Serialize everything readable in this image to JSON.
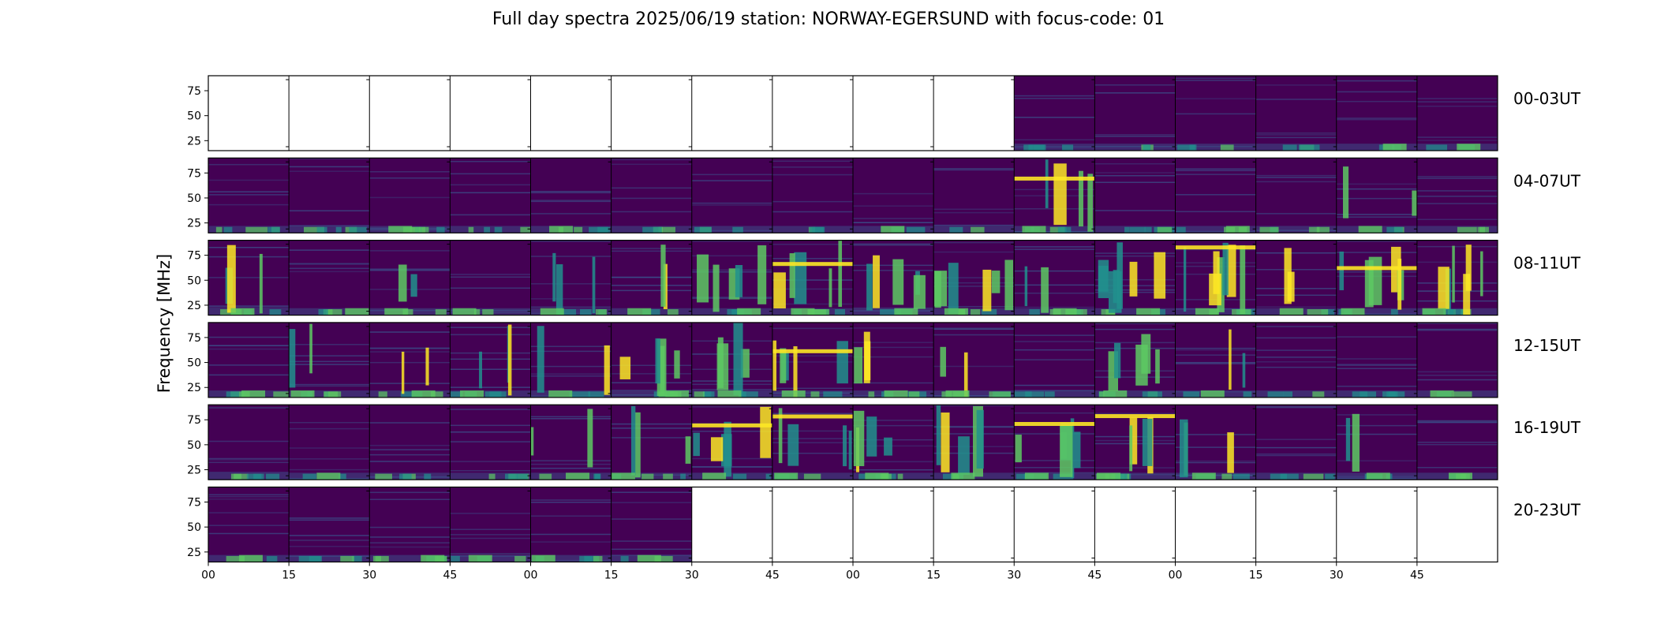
{
  "chart_data": {
    "type": "heatmap",
    "title": "Full day spectra 2025/06/19 station: NORWAY-EGERSUND with focus-code: 01",
    "ylabel": "Frequency [MHz]",
    "ylim": [
      15,
      90
    ],
    "colormap": "viridis",
    "colormap_colors": [
      "#440154",
      "#3b528b",
      "#21908d",
      "#5dc963",
      "#fde725"
    ],
    "yticks": [
      25,
      50,
      75
    ],
    "xticks": [
      "00",
      "15",
      "30",
      "45",
      "00",
      "15",
      "30",
      "45",
      "00",
      "15",
      "30",
      "45",
      "00",
      "15",
      "30",
      "45"
    ],
    "panels_per_row": 16,
    "panel_minutes": 15,
    "rows": [
      {
        "label": "00-03UT",
        "data_start_panel": 10,
        "data_end_panel": 16,
        "activity": [
          0,
          0,
          0,
          0,
          0,
          0,
          0,
          0,
          0,
          0,
          0,
          0,
          0,
          0,
          1,
          1
        ]
      },
      {
        "label": "04-07UT",
        "data_start_panel": 0,
        "data_end_panel": 16,
        "activity": [
          0,
          0,
          1,
          0,
          1,
          0,
          0,
          0,
          1,
          0,
          3,
          0,
          1,
          0,
          2,
          0
        ]
      },
      {
        "label": "08-11UT",
        "data_start_panel": 0,
        "data_end_panel": 16,
        "activity": [
          2,
          1,
          2,
          1,
          2,
          2,
          3,
          3,
          3,
          3,
          2,
          3,
          3,
          2,
          3,
          3
        ]
      },
      {
        "label": "12-15UT",
        "data_start_panel": 0,
        "data_end_panel": 16,
        "activity": [
          1,
          2,
          2,
          2,
          2,
          3,
          3,
          3,
          2,
          2,
          0,
          3,
          2,
          0,
          0,
          1
        ]
      },
      {
        "label": "16-19UT",
        "data_start_panel": 0,
        "data_end_panel": 16,
        "activity": [
          0,
          1,
          0,
          0,
          2,
          2,
          3,
          3,
          3,
          3,
          3,
          3,
          2,
          0,
          2,
          1
        ]
      },
      {
        "label": "20-23UT",
        "data_start_panel": 0,
        "data_end_panel": 6,
        "activity": [
          1,
          0,
          1,
          1,
          1,
          1,
          0,
          0,
          0,
          0,
          0,
          0,
          0,
          0,
          0,
          0
        ]
      }
    ]
  }
}
